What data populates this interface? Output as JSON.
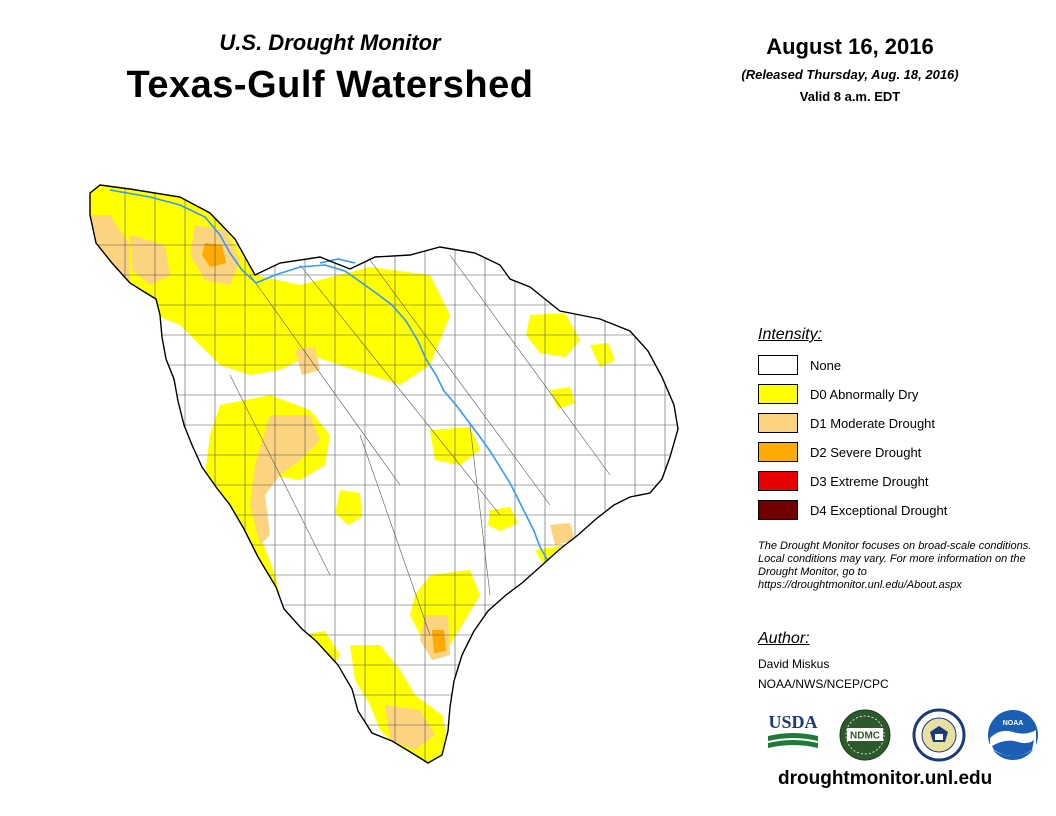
{
  "header": {
    "subtitle": "U.S. Drought Monitor",
    "title": "Texas-Gulf Watershed",
    "date": "August 16, 2016",
    "released": "(Released Thursday, Aug. 18, 2016)",
    "valid": "Valid 8 a.m. EDT"
  },
  "legend": {
    "heading": "Intensity:",
    "items": [
      {
        "label": "None",
        "color": "#ffffff"
      },
      {
        "label": "D0 Abnormally Dry",
        "color": "#ffff00"
      },
      {
        "label": "D1 Moderate Drought",
        "color": "#fcd37f"
      },
      {
        "label": "D2 Severe Drought",
        "color": "#ffaa00"
      },
      {
        "label": "D3 Extreme Drought",
        "color": "#e60000"
      },
      {
        "label": "D4 Exceptional Drought",
        "color": "#730000"
      }
    ]
  },
  "note": "The Drought Monitor focuses on broad-scale conditions. Local conditions may vary. For more information on the Drought Monitor, go to https://droughtmonitor.unl.edu/About.aspx",
  "author": {
    "heading": "Author:",
    "name": "David Miskus",
    "org": "NOAA/NWS/NCEP/CPC"
  },
  "logos": {
    "usda": "USDA",
    "ndmc": "NDMC",
    "noaa": "NOAA"
  },
  "website": "droughtmonitor.unl.edu",
  "colors": {
    "river": "#3399ff",
    "county_lines": "#555555",
    "outline": "#000000"
  }
}
